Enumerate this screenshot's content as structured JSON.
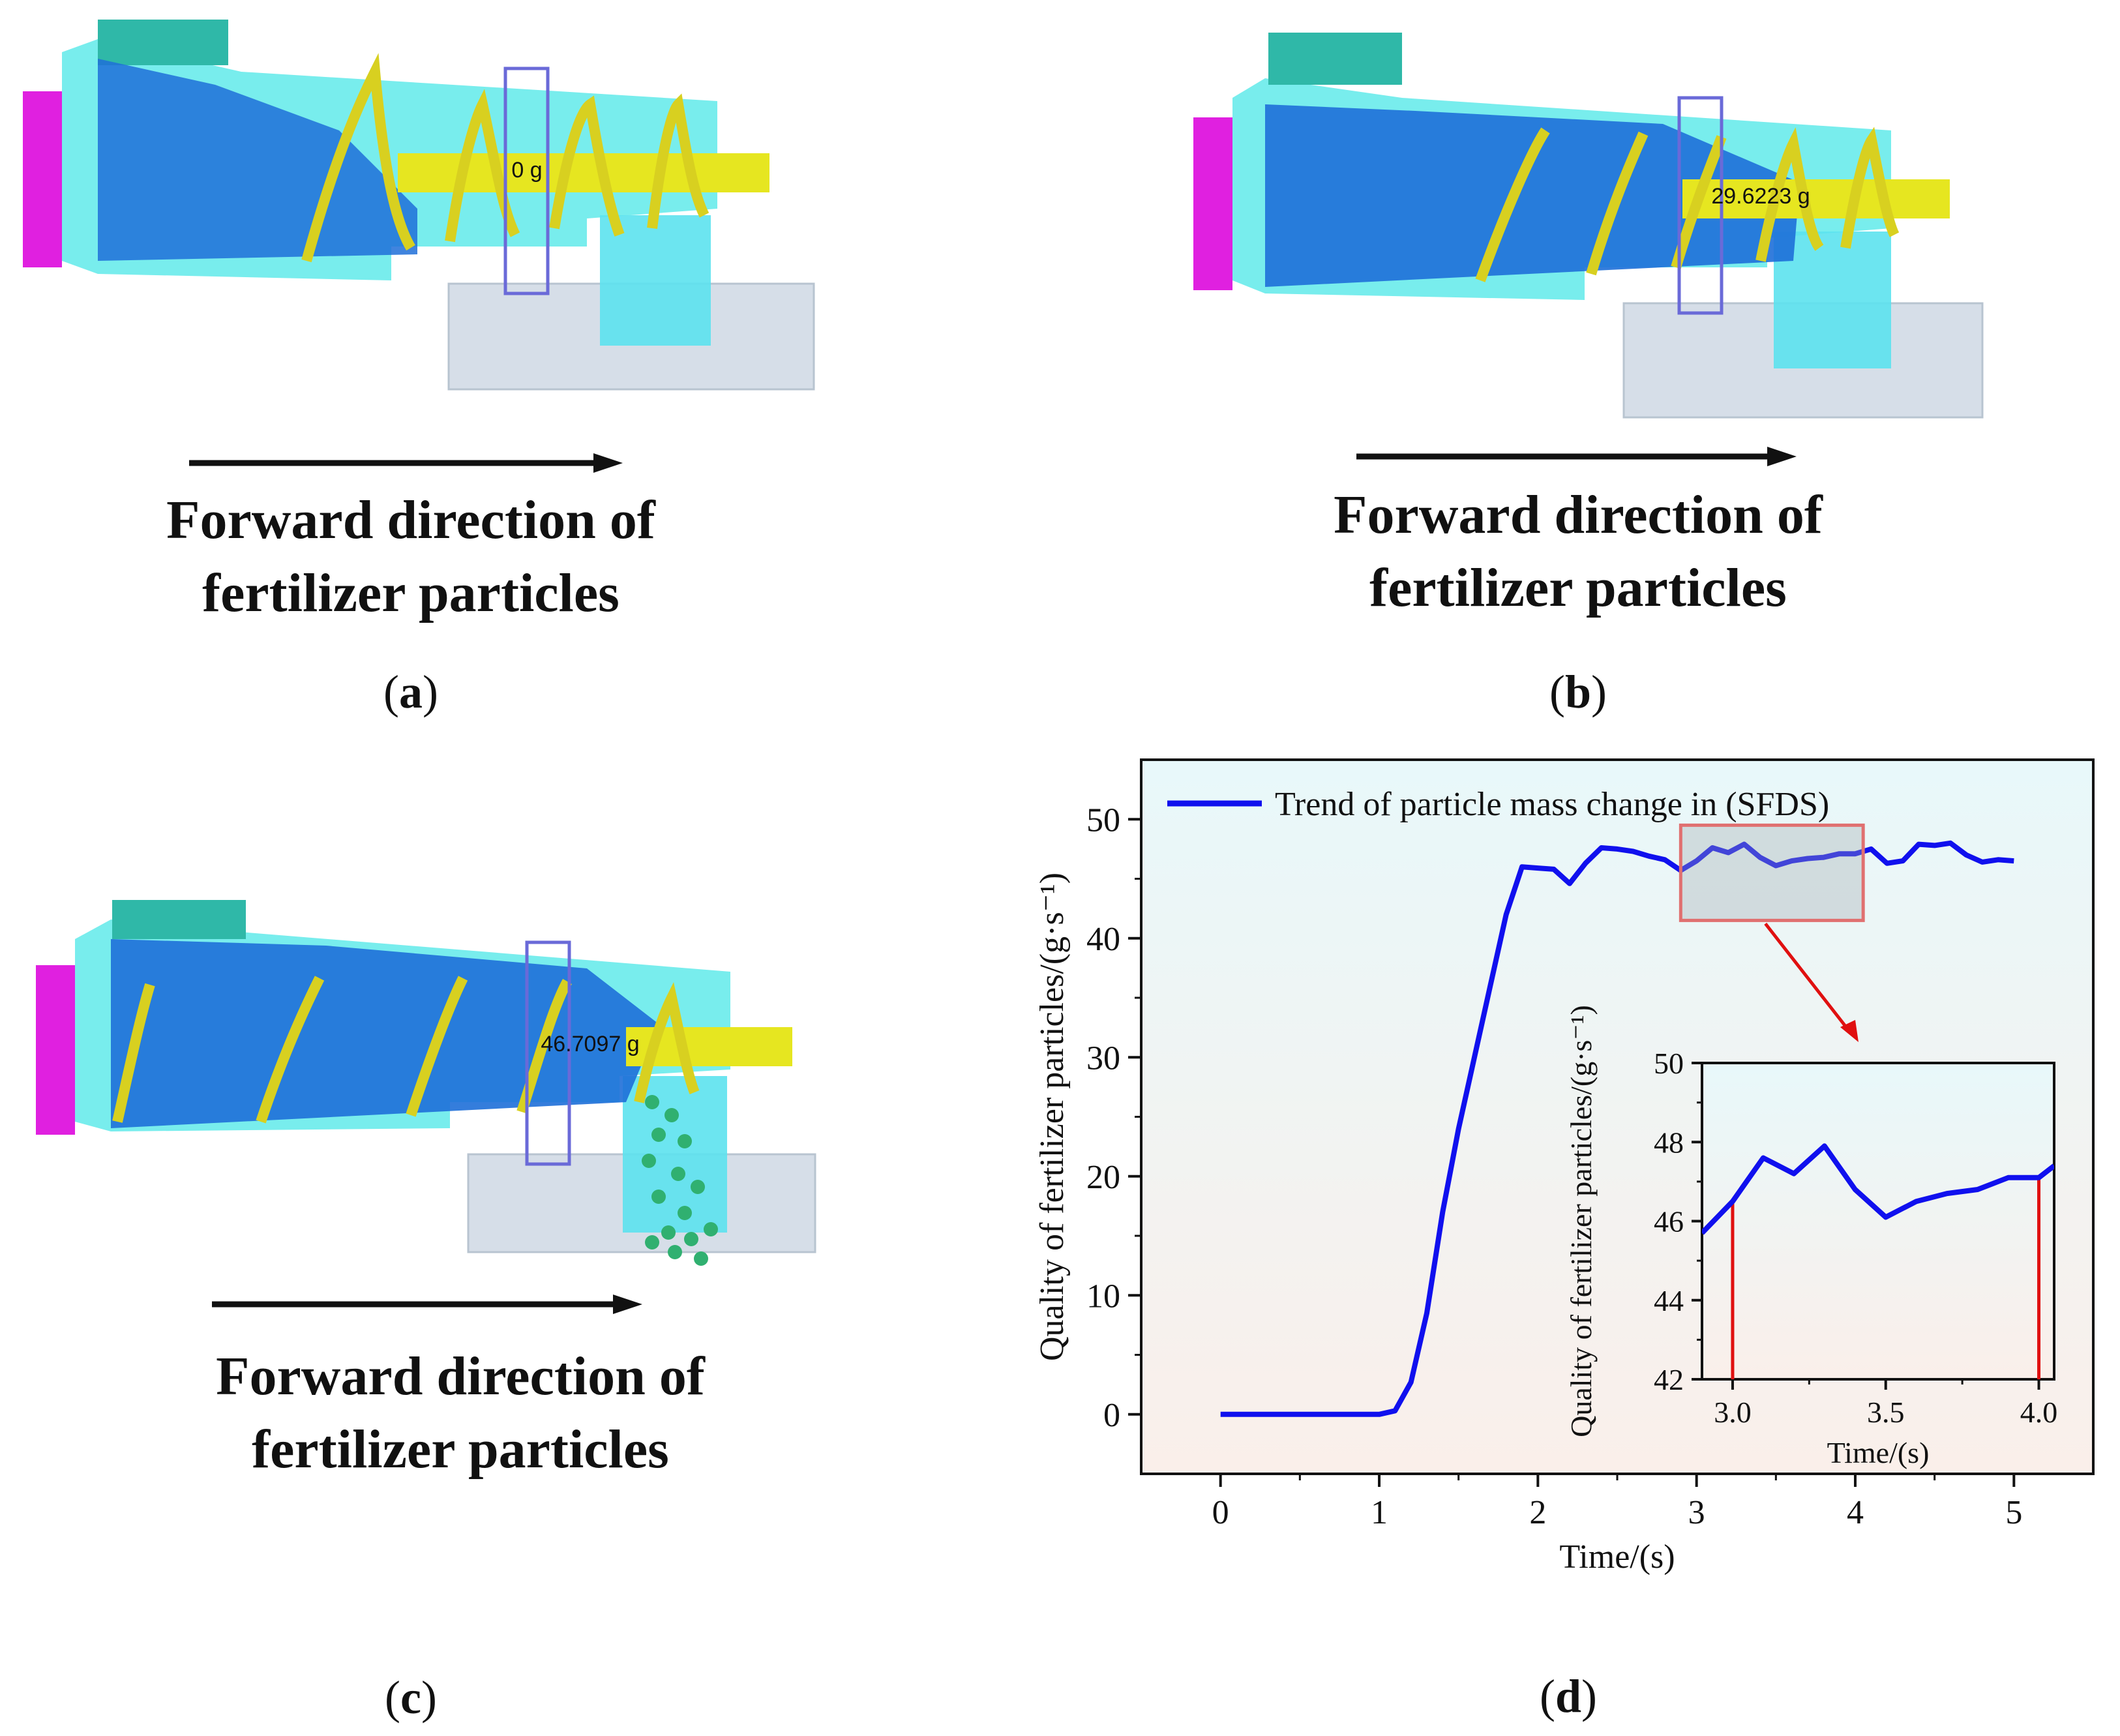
{
  "panels": {
    "a": {
      "label_letter": "a",
      "mass_readout": "0 g",
      "caption_line1": "Forward direction of",
      "caption_line2": "fertilizer particles"
    },
    "b": {
      "label_letter": "b",
      "mass_readout": "29.6223 g",
      "caption_line1": "Forward direction of",
      "caption_line2": "fertilizer particles"
    },
    "c": {
      "label_letter": "c",
      "mass_readout": "46.7097 g",
      "caption_line1": "Forward direction of",
      "caption_line2": "fertilizer particles"
    },
    "d": {
      "label_letter": "d"
    }
  },
  "colors": {
    "housing": "#5FF0F0",
    "screw": "#E6E620",
    "particles": "#1E6FD8",
    "magenta": "#E020E0",
    "hopper": "#2FB8A8",
    "bin": "#D8E0EA",
    "series": "#1010EE",
    "inset_box": "#E07070",
    "marker": "#E01010"
  },
  "chart_data": [
    {
      "type": "line",
      "title": "",
      "xlabel": "Time/(s)",
      "ylabel": "Quality of fertilizer particles/(g·s⁻¹)",
      "xlim": [
        -0.5,
        5.5
      ],
      "ylim": [
        -5,
        55
      ],
      "xticks": [
        0,
        1,
        2,
        3,
        4,
        5
      ],
      "xtick_labels": [
        "0",
        "1",
        "2",
        "3",
        "4",
        "5"
      ],
      "yticks": [
        0,
        10,
        20,
        30,
        40,
        50
      ],
      "ytick_labels": [
        "0",
        "10",
        "20",
        "30",
        "40",
        "50"
      ],
      "legend": "top-left",
      "series": [
        {
          "name": "Trend of particle mass change in (SFDS)",
          "x": [
            0,
            0.1,
            0.2,
            0.3,
            0.4,
            0.5,
            0.6,
            0.7,
            0.8,
            0.9,
            1.0,
            1.1,
            1.2,
            1.3,
            1.4,
            1.5,
            1.6,
            1.7,
            1.8,
            1.9,
            2.0,
            2.1,
            2.2,
            2.3,
            2.4,
            2.5,
            2.6,
            2.7,
            2.8,
            2.9,
            3.0,
            3.1,
            3.2,
            3.3,
            3.4,
            3.5,
            3.6,
            3.7,
            3.8,
            3.9,
            4.0,
            4.1,
            4.2,
            4.3,
            4.4,
            4.5,
            4.6,
            4.7,
            4.8,
            4.9,
            5.0
          ],
          "values": [
            0,
            0,
            0,
            0,
            0,
            0,
            0,
            0,
            0,
            0,
            0,
            0.3,
            2.7,
            8.5,
            17,
            24,
            30,
            36,
            42,
            46,
            45.9,
            45.8,
            44.6,
            46.3,
            47.6,
            47.5,
            47.3,
            46.9,
            46.6,
            45.7,
            46.5,
            47.6,
            47.2,
            47.9,
            46.8,
            46.1,
            46.5,
            46.7,
            46.8,
            47.1,
            47.1,
            47.5,
            46.3,
            46.5,
            47.9,
            47.8,
            48.0,
            47.0,
            46.4,
            46.6,
            46.5
          ]
        }
      ]
    },
    {
      "type": "line",
      "title": "",
      "xlabel": "Time/(s)",
      "ylabel": "Quality of fertilizer particles/(g·s⁻¹)",
      "xlim": [
        2.9,
        4.05
      ],
      "ylim": [
        42,
        50
      ],
      "xticks": [
        3.0,
        3.5,
        4.0
      ],
      "xtick_labels": [
        "3.0",
        "3.5",
        "4.0"
      ],
      "yticks": [
        42,
        44,
        46,
        48,
        50
      ],
      "ytick_labels": [
        "42",
        "44",
        "46",
        "48",
        "50"
      ],
      "markers_x": [
        3.0,
        4.0
      ],
      "series": [
        {
          "name": "Trend of particle mass change in (SFDS)",
          "x": [
            2.9,
            3.0,
            3.1,
            3.2,
            3.3,
            3.4,
            3.5,
            3.6,
            3.7,
            3.8,
            3.9,
            4.0,
            4.05
          ],
          "values": [
            45.7,
            46.5,
            47.6,
            47.2,
            47.9,
            46.8,
            46.1,
            46.5,
            46.7,
            46.8,
            47.1,
            47.1,
            47.4
          ]
        }
      ]
    }
  ]
}
